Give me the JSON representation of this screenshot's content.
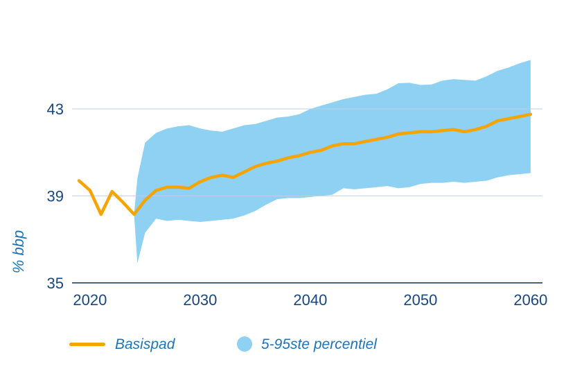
{
  "chart_data": {
    "type": "area",
    "title": "",
    "ylabel": "% bbp",
    "xlabel": "",
    "x_ticks": [
      2020,
      2030,
      2040,
      2050,
      2060
    ],
    "y_ticks": [
      43,
      39,
      35
    ],
    "y_gridlines": [
      43,
      39
    ],
    "baseline_value": 35,
    "xlim": [
      2019,
      2060.5
    ],
    "ylim": [
      34.8,
      45.6
    ],
    "colors": {
      "band": "#8ED1F2",
      "line": "#F5A400",
      "axis": "#154273",
      "tick_text": "#17477E",
      "label_text": "#1F73B4",
      "gridline": "#BCD2E4"
    },
    "series_basispad": {
      "name": "Basispad",
      "x": [
        2019,
        2020,
        2021,
        2022,
        2023,
        2024,
        2025,
        2026,
        2027,
        2028,
        2029,
        2030,
        2031,
        2032,
        2033,
        2034,
        2035,
        2036,
        2037,
        2038,
        2039,
        2040,
        2041,
        2042,
        2043,
        2044,
        2045,
        2046,
        2047,
        2048,
        2049,
        2050,
        2051,
        2052,
        2053,
        2054,
        2055,
        2056,
        2057,
        2058,
        2059,
        2060
      ],
      "y": [
        39.7,
        39.25,
        38.15,
        39.2,
        38.7,
        38.15,
        38.8,
        39.25,
        39.4,
        39.4,
        39.35,
        39.65,
        39.85,
        39.95,
        39.85,
        40.1,
        40.35,
        40.5,
        40.6,
        40.75,
        40.85,
        41.0,
        41.1,
        41.3,
        41.4,
        41.4,
        41.5,
        41.6,
        41.7,
        41.85,
        41.9,
        41.95,
        41.95,
        42.0,
        42.05,
        41.95,
        42.05,
        42.2,
        42.45,
        42.55,
        42.65,
        42.75
      ]
    },
    "series_band": {
      "name": "5-95ste percentiel",
      "x": [
        2024,
        2024.3,
        2025,
        2026,
        2027,
        2028,
        2029,
        2030,
        2031,
        2032,
        2033,
        2034,
        2035,
        2036,
        2037,
        2038,
        2039,
        2040,
        2041,
        2042,
        2043,
        2044,
        2045,
        2046,
        2047,
        2048,
        2049,
        2050,
        2051,
        2052,
        2053,
        2054,
        2055,
        2056,
        2057,
        2058,
        2059,
        2060
      ],
      "low": [
        38.15,
        35.9,
        37.3,
        37.95,
        37.85,
        37.9,
        37.85,
        37.8,
        37.85,
        37.9,
        37.95,
        38.1,
        38.3,
        38.6,
        38.85,
        38.9,
        38.9,
        38.95,
        39.0,
        39.05,
        39.35,
        39.3,
        39.35,
        39.4,
        39.45,
        39.35,
        39.4,
        39.55,
        39.6,
        39.6,
        39.65,
        39.6,
        39.65,
        39.7,
        39.85,
        39.95,
        40.0,
        40.05
      ],
      "high": [
        38.15,
        39.8,
        41.45,
        41.9,
        42.1,
        42.2,
        42.25,
        42.1,
        42.0,
        41.95,
        42.1,
        42.25,
        42.3,
        42.45,
        42.6,
        42.65,
        42.75,
        43.0,
        43.15,
        43.3,
        43.45,
        43.55,
        43.65,
        43.7,
        43.9,
        44.18,
        44.2,
        44.1,
        44.12,
        44.3,
        44.37,
        44.33,
        44.3,
        44.5,
        44.75,
        44.9,
        45.1,
        45.25
      ]
    },
    "legend": [
      {
        "label": "Basispad",
        "swatch": "line",
        "color": "#F5A400"
      },
      {
        "label": "5-95ste percentiel",
        "swatch": "circle",
        "color": "#8ED1F2"
      }
    ]
  }
}
